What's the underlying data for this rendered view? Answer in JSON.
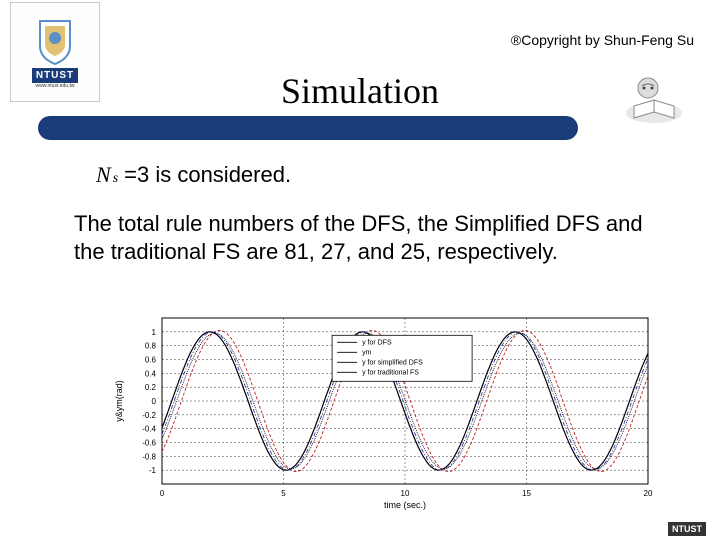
{
  "copyright": "®Copyright by Shun-Feng Su",
  "logo": {
    "text": "NTUST",
    "url": "www.ntust.edu.tw",
    "shield_blue": "#5a8fc7",
    "shield_gold": "#d4a838",
    "bar_color": "#1a3d7a"
  },
  "title": "Simulation",
  "line1_math": {
    "var": "N",
    "sub": "s"
  },
  "line1_rest": "=3 is considered.",
  "paragraph": "The total rule numbers of the DFS, the Simplified DFS and the traditional FS are 81, 27, and 25, respectively.",
  "footer_logo": "NTUST",
  "chart": {
    "type": "line",
    "xlabel": "time (sec.)",
    "ylabel": "y&ym(rad)",
    "xlim": [
      0,
      20
    ],
    "ylim": [
      -1.2,
      1.2
    ],
    "xticks": [
      0,
      5,
      10,
      15,
      20
    ],
    "yticks": [
      -1,
      -0.8,
      -0.6,
      -0.4,
      -0.2,
      0,
      0.2,
      0.4,
      0.6,
      0.8,
      1
    ],
    "ytick_labels": [
      "-1",
      "-0.8",
      "-0.6",
      "-0.4",
      "-0.2",
      "0",
      "0.2",
      "0.4",
      "0.6",
      "0.8",
      "1"
    ],
    "tick_fontsize": 8,
    "label_fontsize": 9,
    "grid_color": "#000000",
    "grid_dash": "2,2",
    "axis_color": "#000000",
    "background_color": "#ffffff",
    "legend": {
      "items": [
        "y for DFS",
        "ym",
        "y for simplified DFS",
        "y for traditional FS"
      ],
      "box_stroke": "#000000",
      "fontsize": 7
    },
    "series": [
      {
        "name": "ym",
        "color": "#000000",
        "width": 1.2,
        "dash": "none",
        "amp": 1.0,
        "period": 6.28,
        "phase": -0.4
      },
      {
        "name": "y_dfs",
        "color": "#c02020",
        "width": 0.9,
        "dash": "3,2",
        "amp": 1.02,
        "period": 6.28,
        "phase": -0.8
      },
      {
        "name": "y_sdfs",
        "color": "#000000",
        "width": 0.8,
        "dash": "1,1",
        "amp": 0.98,
        "period": 6.28,
        "phase": -0.6
      },
      {
        "name": "y_fs",
        "color": "#2020a0",
        "width": 0.8,
        "dash": "4,2,1,2",
        "amp": 1.0,
        "period": 6.28,
        "phase": -0.5
      }
    ]
  }
}
